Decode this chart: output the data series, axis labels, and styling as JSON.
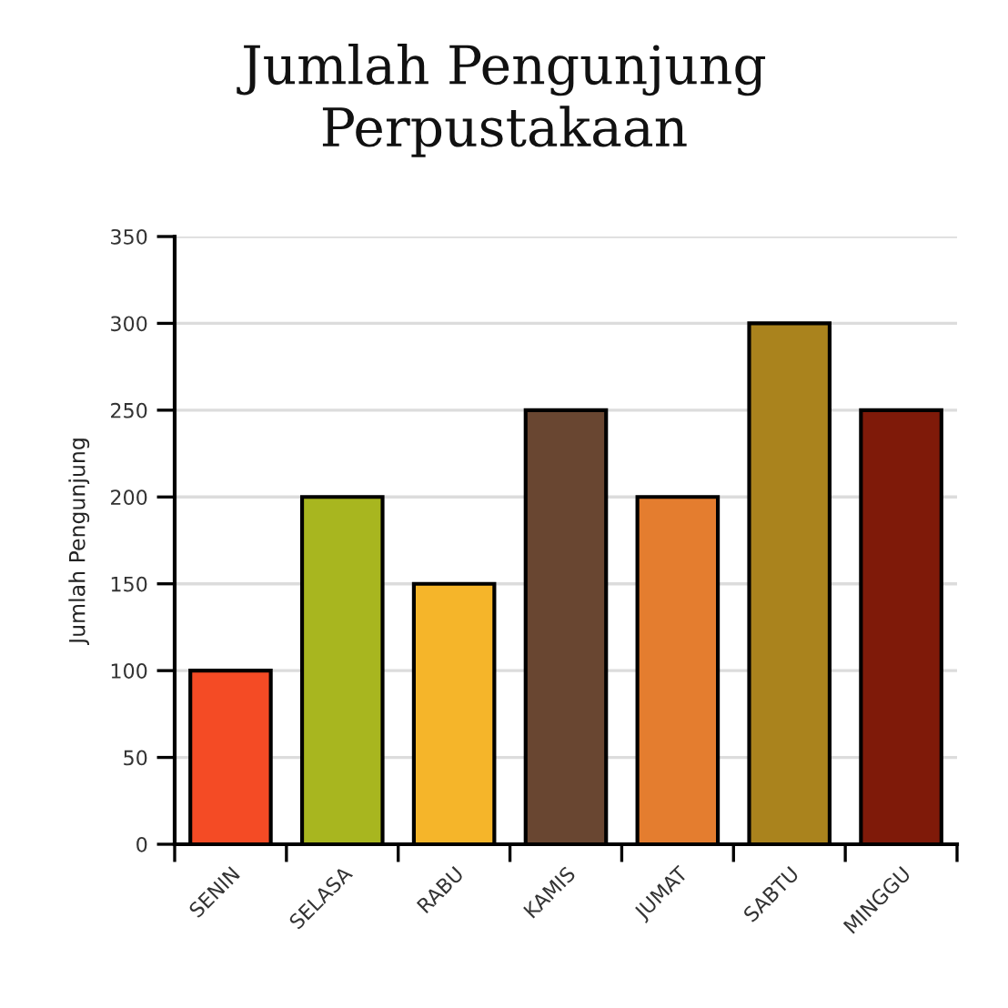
{
  "chart_data": {
    "type": "bar",
    "title": "Jumlah Pengunjung\nPerpustakaan",
    "ylabel": "Jumlah Pengunjung",
    "categories": [
      "SENIN",
      "SELASA",
      "RABU",
      "KAMIS",
      "JUMAT",
      "SABTU",
      "MINGGU"
    ],
    "values": [
      100,
      200,
      150,
      250,
      200,
      300,
      250
    ],
    "colors": [
      "#f44b25",
      "#a8b61f",
      "#f5b52a",
      "#694631",
      "#e47d2f",
      "#aa831d",
      "#7f1a09"
    ],
    "ylim": [
      0,
      350
    ],
    "yticks": [
      0,
      50,
      100,
      150,
      200,
      250,
      300,
      350
    ],
    "grid": "y",
    "legend": false
  }
}
